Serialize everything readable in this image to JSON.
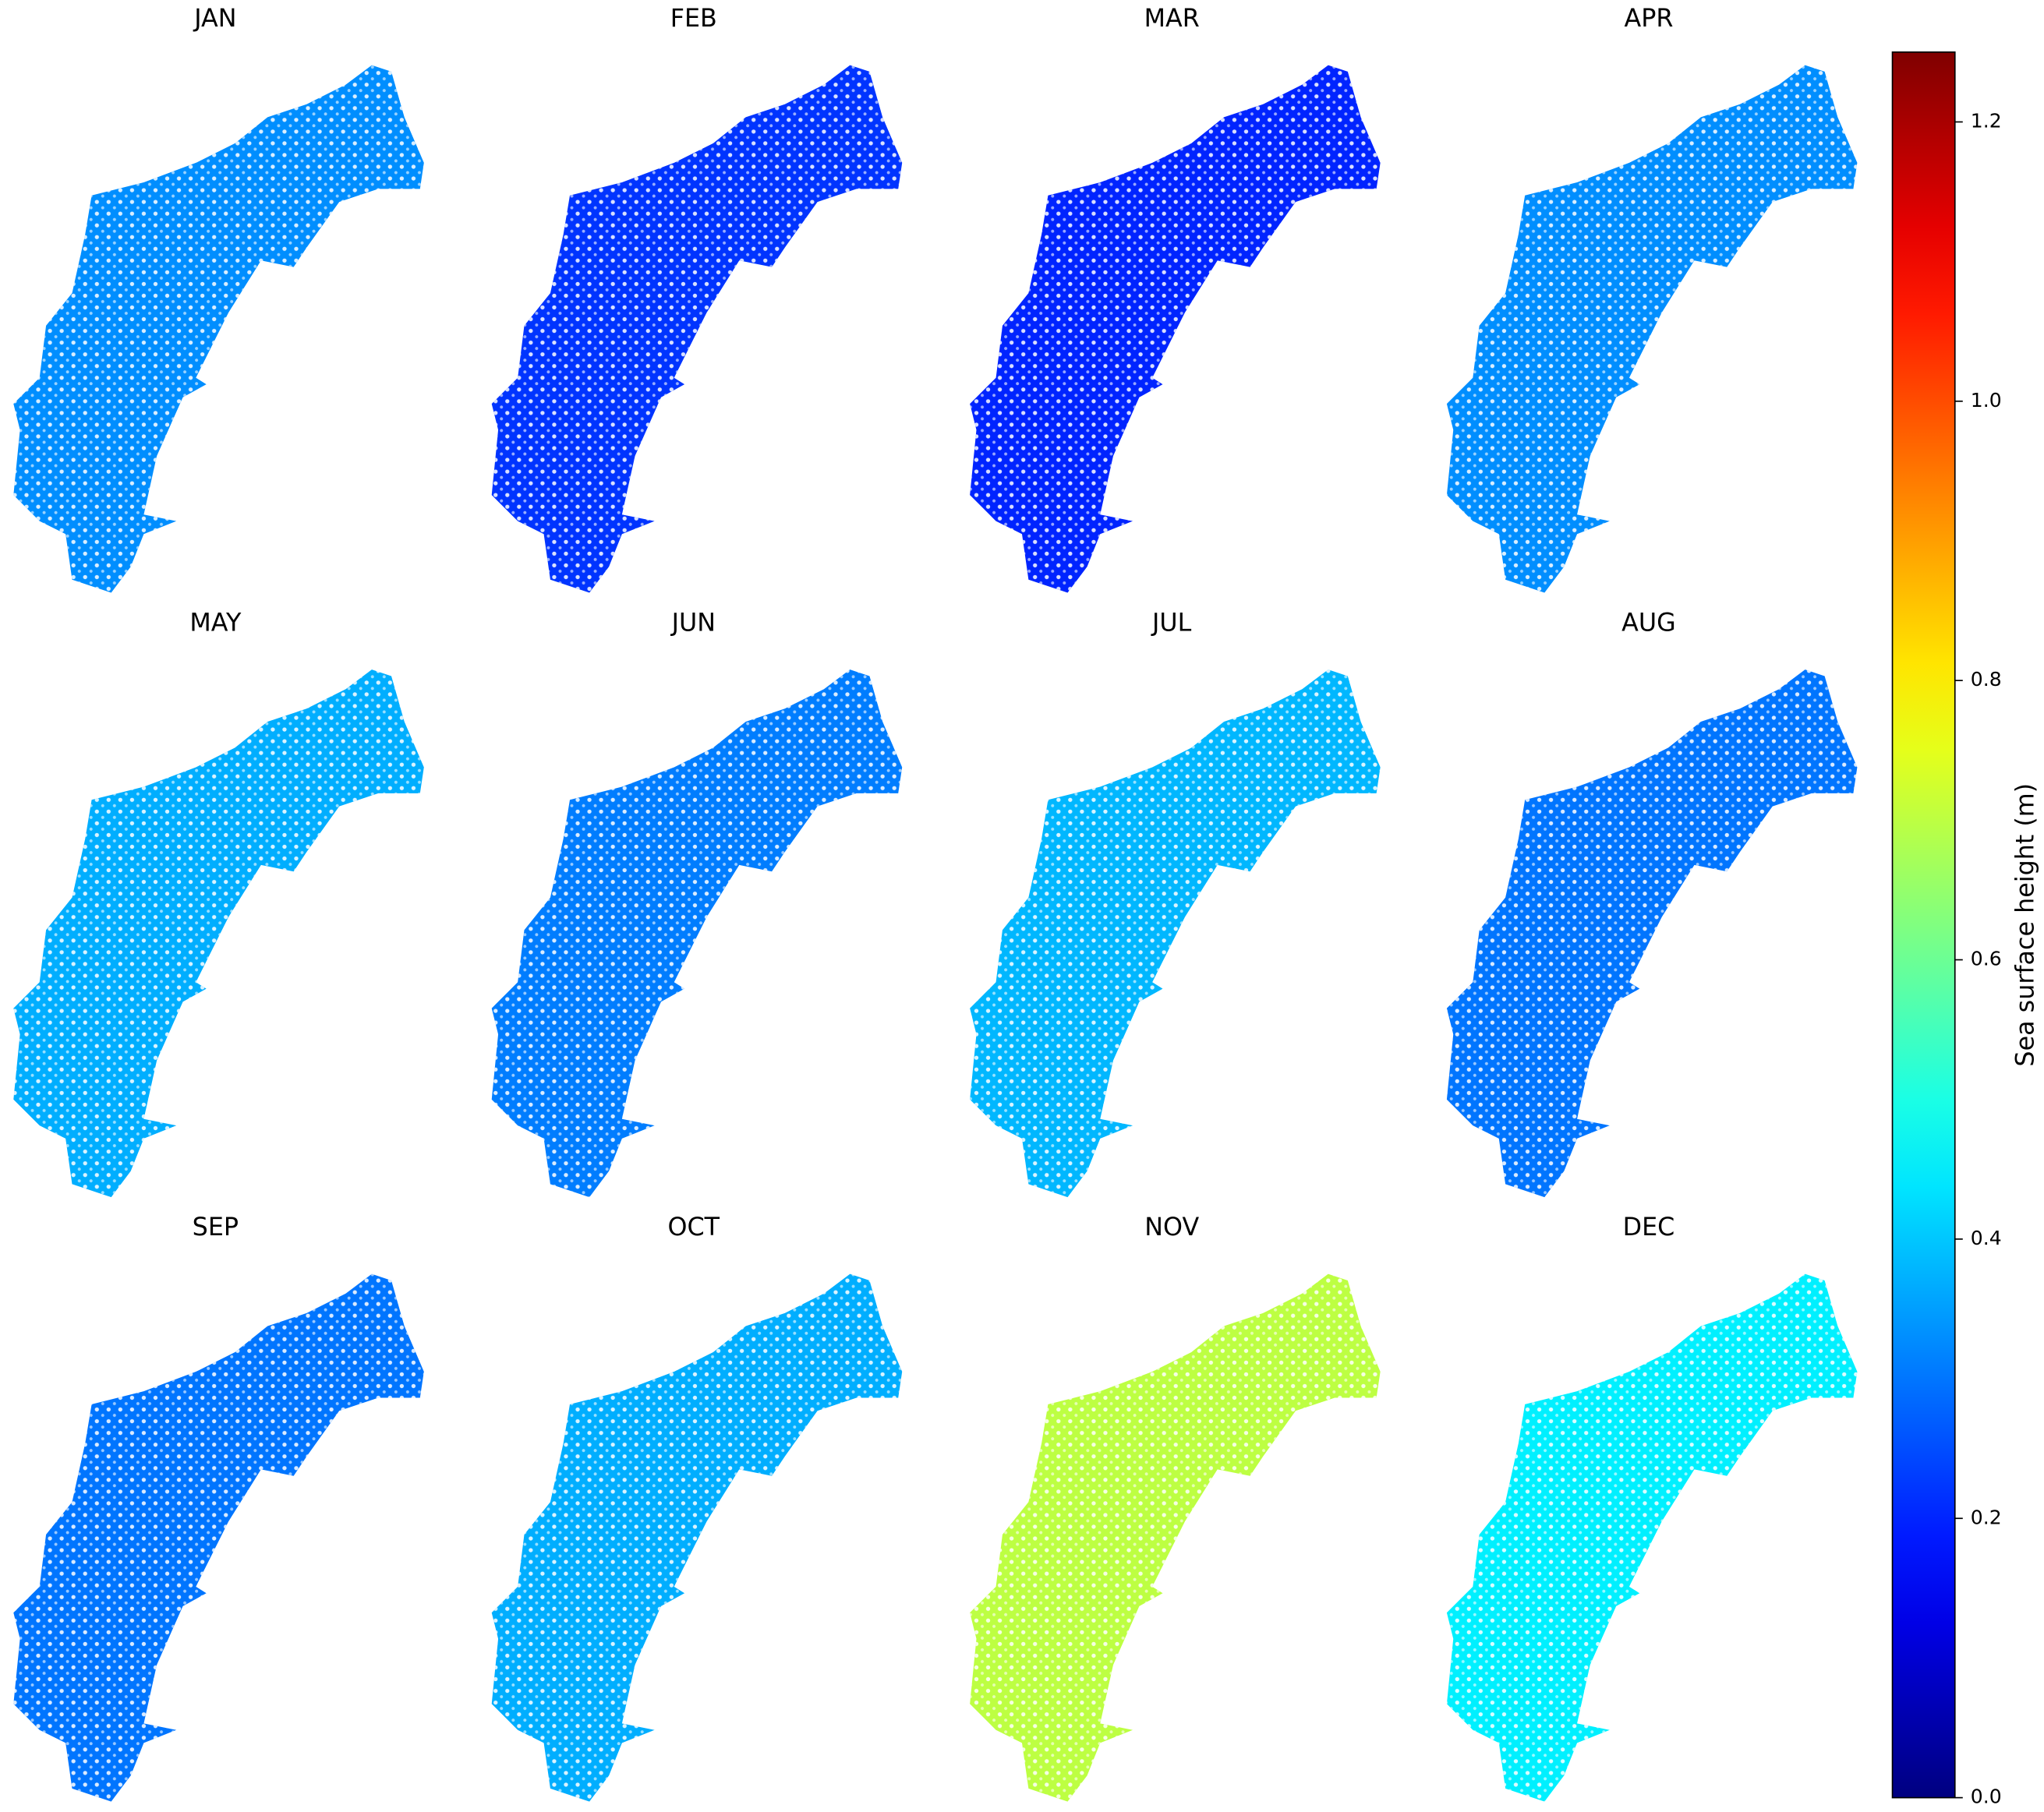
{
  "chart_data": {
    "type": "map",
    "categories": [
      "JAN",
      "FEB",
      "MAR",
      "APR",
      "MAY",
      "JUN",
      "JUL",
      "AUG",
      "SEP",
      "OCT",
      "NOV",
      "DEC"
    ],
    "values": [
      0.33,
      0.22,
      0.2,
      0.33,
      0.37,
      0.31,
      0.38,
      0.3,
      0.3,
      0.37,
      0.7,
      0.45
    ],
    "colormap": "jet",
    "clim": [
      0,
      1.25
    ],
    "cticks": [
      {
        "value": 0,
        "label": "0.0"
      },
      0.2,
      0.4,
      0.6,
      0.8,
      {
        "value": 1,
        "label": "1.0"
      },
      1.2
    ],
    "colorbar_label": "Sea surface height (m)"
  }
}
